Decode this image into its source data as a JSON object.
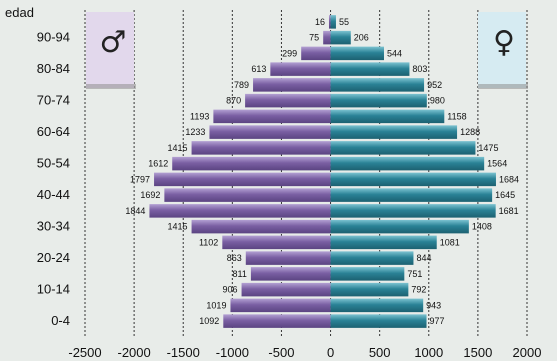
{
  "chart_data": {
    "type": "bar",
    "orientation": "horizontal",
    "subtype": "population-pyramid",
    "ylabel": "edad",
    "xlim": [
      -2500,
      2000
    ],
    "x_ticks": [
      -2500,
      -2000,
      -1500,
      -1000,
      -500,
      0,
      500,
      1000,
      1500,
      2000
    ],
    "grid": "vertical dotted",
    "y_tick_labels": [
      "0-4",
      "10-14",
      "20-24",
      "30-34",
      "40-44",
      "50-54",
      "60-64",
      "70-74",
      "80-84",
      "90-94"
    ],
    "series": [
      {
        "symbol": "♂",
        "color": "#7a5fa3",
        "values": [
          1092,
          1019,
          906,
          811,
          863,
          1102,
          1415,
          1844,
          1692,
          1797,
          1612,
          1415,
          1233,
          1193,
          870,
          789,
          613,
          299,
          75,
          16
        ]
      },
      {
        "symbol": "♀",
        "color": "#2a8296",
        "values": [
          977,
          943,
          792,
          751,
          844,
          1081,
          1408,
          1681,
          1645,
          1684,
          1564,
          1475,
          1288,
          1158,
          980,
          952,
          803,
          544,
          206,
          55
        ]
      }
    ]
  }
}
